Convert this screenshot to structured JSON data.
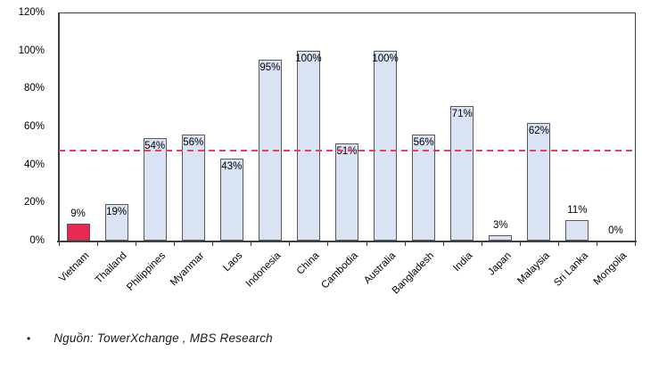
{
  "chart_data": {
    "type": "bar",
    "title": "",
    "xlabel": "",
    "ylabel": "",
    "categories": [
      "Vietnam",
      "Thailand",
      "Philippines",
      "Myanmar",
      "Laos",
      "Indonesia",
      "China",
      "Cambodia",
      "Australia",
      "Bangladesh",
      "India",
      "Japan",
      "Malaysia",
      "Sri Lanka",
      "Mongolia"
    ],
    "values": [
      9,
      19,
      54,
      56,
      43,
      95,
      100,
      51,
      100,
      56,
      71,
      3,
      62,
      11,
      0
    ],
    "value_labels": [
      "9%",
      "19%",
      "54%",
      "56%",
      "43%",
      "95%",
      "100%",
      "51%",
      "100%",
      "56%",
      "71%",
      "3%",
      "62%",
      "11%",
      "0%"
    ],
    "label_placement": [
      "above",
      "inside",
      "inside",
      "inside",
      "inside",
      "inside",
      "inside",
      "inside",
      "inside",
      "inside",
      "inside",
      "above",
      "inside",
      "above",
      "above"
    ],
    "highlight_index": 0,
    "colors": {
      "bar_fill": "#DAE3F3",
      "bar_border": "#595959",
      "highlight_fill": "#E9294F",
      "reference_line": "#F23B5F",
      "axis": "#3f3f3f"
    },
    "reference_line": {
      "value": 47,
      "style": "dashed"
    },
    "y_axis": {
      "min": 0,
      "max": 120,
      "step": 20,
      "ticks_top_down": [
        "120%",
        "100%",
        "80%",
        "60%",
        "40%",
        "20%",
        "0%"
      ]
    },
    "grid": "off",
    "legend": "none"
  },
  "footer": {
    "bullet": "•",
    "source_text": "Nguồn: TowerXchange , MBS Research"
  }
}
